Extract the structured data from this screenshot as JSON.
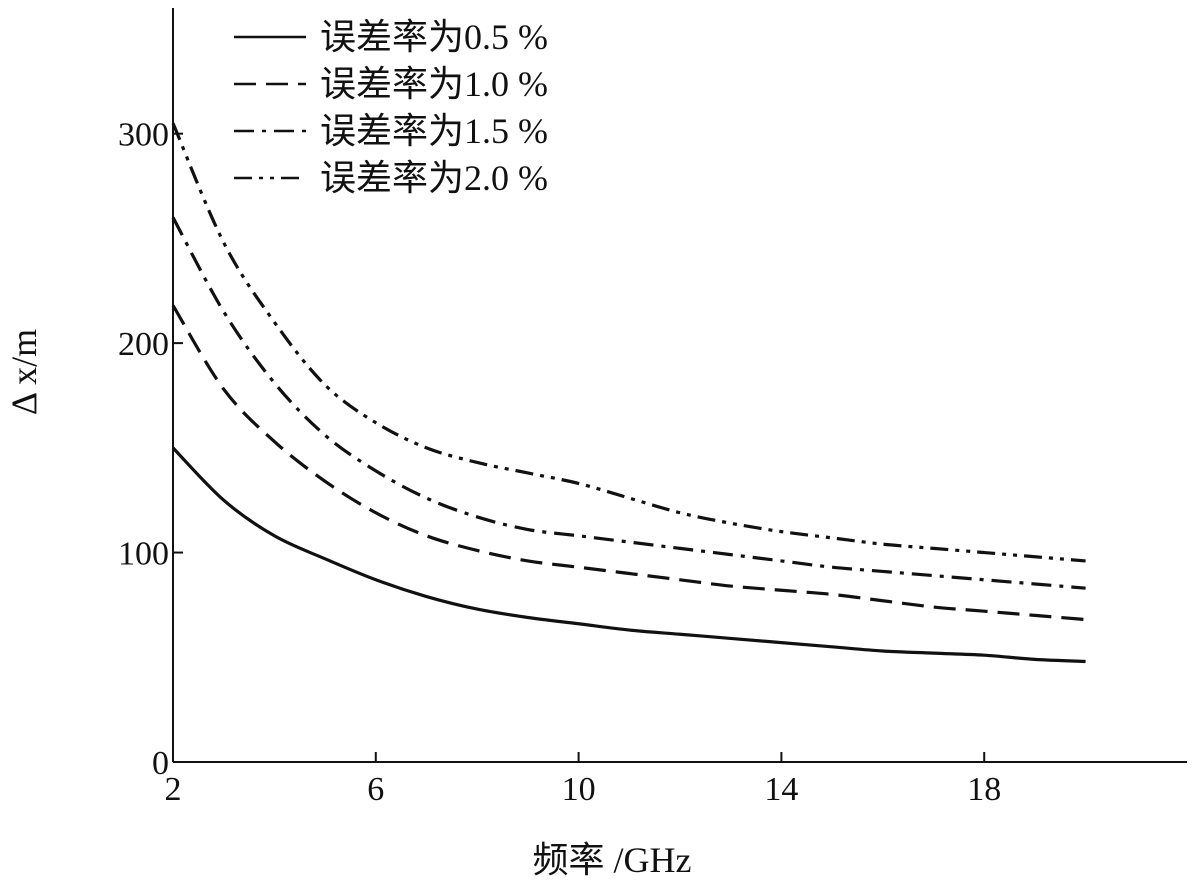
{
  "chart_data": {
    "type": "line",
    "xlabel": "频率 /GHz",
    "ylabel": "Δ x/m",
    "xlim": [
      2,
      22
    ],
    "ylim": [
      0,
      360
    ],
    "xticks": [
      2,
      6,
      10,
      14,
      18
    ],
    "yticks": [
      0,
      100,
      200,
      300
    ],
    "grid": false,
    "legend_position": "top-left",
    "colors": {
      "line": "#111111",
      "axis": "#111111",
      "background": "#ffffff"
    },
    "x": [
      2,
      3,
      4,
      5,
      6,
      7,
      8,
      9,
      10,
      11,
      12,
      13,
      14,
      15,
      16,
      17,
      18,
      19,
      20
    ],
    "series": [
      {
        "name": "误差率为0.5 %",
        "dash": "solid",
        "values": [
          150,
          125,
          108,
          97,
          87,
          79,
          73,
          69,
          66,
          63,
          61,
          59,
          57,
          55,
          53,
          52,
          51,
          49,
          48
        ]
      },
      {
        "name": "误差率为1.0 %",
        "dash": "dash",
        "values": [
          218,
          178,
          153,
          134,
          119,
          108,
          101,
          96,
          93,
          90,
          87,
          84,
          82,
          80,
          77,
          74,
          72,
          70,
          68
        ]
      },
      {
        "name": "误差率为1.5 %",
        "dash": "dashdot",
        "values": [
          260,
          215,
          181,
          156,
          139,
          126,
          117,
          111,
          108,
          105,
          102,
          99,
          96,
          93,
          91,
          89,
          87,
          85,
          83
        ]
      },
      {
        "name": "误差率为2.0 %",
        "dash": "dashdotdot",
        "values": [
          305,
          248,
          210,
          180,
          162,
          150,
          143,
          138,
          133,
          126,
          119,
          114,
          110,
          107,
          104,
          102,
          100,
          98,
          96
        ]
      }
    ]
  }
}
